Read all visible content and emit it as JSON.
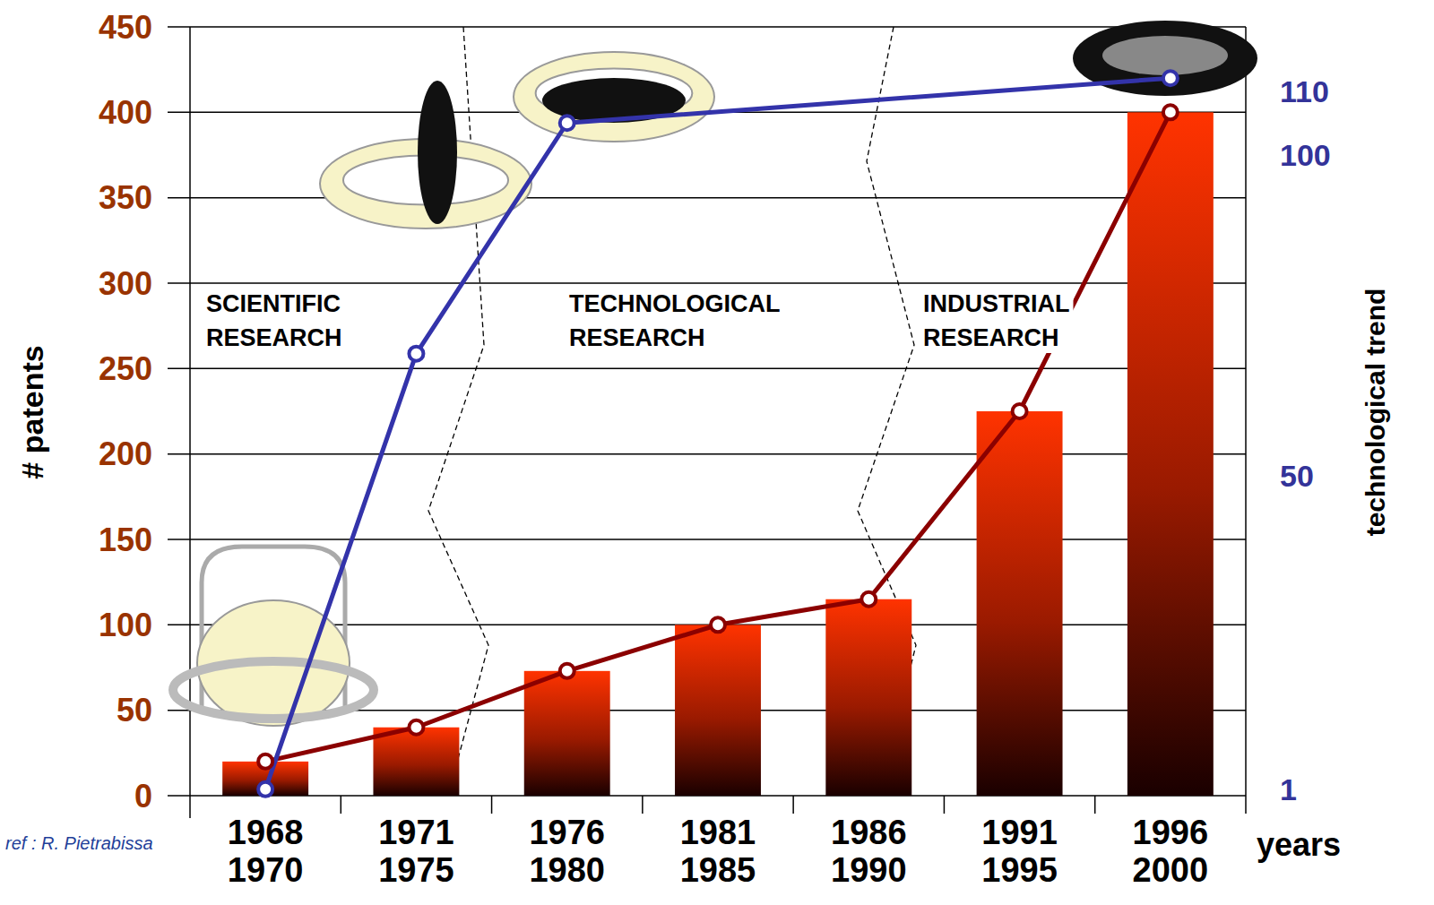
{
  "chart_data": {
    "type": "bar",
    "categories": [
      "1968\n1970",
      "1971\n1975",
      "1976\n1980",
      "1981\n1985",
      "1986\n1990",
      "1991\n1995",
      "1996\n2000"
    ],
    "x_label": "years",
    "y_label": "# patents",
    "y2_label": "technological trend",
    "ylim": [
      0,
      450
    ],
    "yticks": [
      0,
      50,
      100,
      150,
      200,
      250,
      300,
      350,
      400,
      450
    ],
    "y2lim": [
      0,
      120
    ],
    "y2ticks": [
      1,
      50,
      100,
      110
    ],
    "grid": true,
    "series": [
      {
        "type": "bar",
        "color": "#ff3300",
        "values": [
          20,
          40,
          73,
          100,
          115,
          225,
          400
        ]
      },
      {
        "type": "line",
        "color": "#8b0000",
        "marker": "circle",
        "values": [
          20,
          40,
          73,
          100,
          115,
          225,
          400
        ]
      },
      {
        "type": "line",
        "axis": "y2",
        "color": "#3333aa",
        "marker": "circle",
        "x": [
          "1968\n1970",
          "1971\n1975",
          "1976\n1980",
          "1996\n2000"
        ],
        "values": [
          1,
          69,
          105,
          112
        ]
      }
    ],
    "annotations": [
      "SCIENTIFIC\nRESEARCH",
      "TECHNOLOGICAL\nRESEARCH",
      "INDUSTRIAL\nRESEARCH"
    ],
    "source": "ref : R. Pietrabissa"
  }
}
